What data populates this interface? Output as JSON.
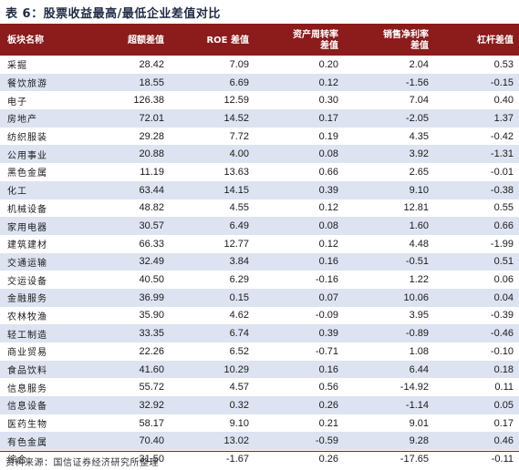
{
  "title": "表 6：股票收益最高/最低企业差值对比",
  "source": "资料来源：国信证券经济研究所整理",
  "colors": {
    "header_bg": "#8c1b1b",
    "stripe_bg": "#dde3f1",
    "title_text": "#1f2a44"
  },
  "table": {
    "headers": [
      "板块名称",
      "超额差值",
      "ROE 差值",
      "资产周转率\n差值",
      "销售净利率\n差值",
      "杠杆差值"
    ],
    "rows": [
      [
        "采掘",
        "28.42",
        "7.09",
        "0.20",
        "2.04",
        "0.53"
      ],
      [
        "餐饮旅游",
        "18.55",
        "6.69",
        "0.12",
        "-1.56",
        "-0.15"
      ],
      [
        "电子",
        "126.38",
        "12.59",
        "0.30",
        "7.04",
        "0.40"
      ],
      [
        "房地产",
        "72.01",
        "14.52",
        "0.17",
        "-2.05",
        "1.37"
      ],
      [
        "纺织服装",
        "29.28",
        "7.72",
        "0.19",
        "4.35",
        "-0.42"
      ],
      [
        "公用事业",
        "20.88",
        "4.00",
        "0.08",
        "3.92",
        "-1.31"
      ],
      [
        "黑色金属",
        "11.19",
        "13.63",
        "0.66",
        "2.65",
        "-0.01"
      ],
      [
        "化工",
        "63.44",
        "14.15",
        "0.39",
        "9.10",
        "-0.38"
      ],
      [
        "机械设备",
        "48.82",
        "4.55",
        "0.12",
        "12.81",
        "0.55"
      ],
      [
        "家用电器",
        "30.57",
        "6.49",
        "0.08",
        "1.60",
        "0.66"
      ],
      [
        "建筑建材",
        "66.33",
        "12.77",
        "0.12",
        "4.48",
        "-1.99"
      ],
      [
        "交通运输",
        "32.49",
        "3.84",
        "0.16",
        "-0.51",
        "0.51"
      ],
      [
        "交运设备",
        "40.50",
        "6.29",
        "-0.16",
        "1.22",
        "0.06"
      ],
      [
        "金融服务",
        "36.99",
        "0.15",
        "0.07",
        "10.06",
        "0.04"
      ],
      [
        "农林牧渔",
        "35.90",
        "4.62",
        "-0.09",
        "3.95",
        "-0.39"
      ],
      [
        "轻工制造",
        "33.35",
        "6.74",
        "0.39",
        "-0.89",
        "-0.46"
      ],
      [
        "商业贸易",
        "22.26",
        "6.52",
        "-0.71",
        "1.08",
        "-0.10"
      ],
      [
        "食品饮料",
        "41.60",
        "10.29",
        "0.16",
        "6.44",
        "0.18"
      ],
      [
        "信息服务",
        "55.72",
        "4.57",
        "0.56",
        "-14.92",
        "0.11"
      ],
      [
        "信息设备",
        "32.92",
        "0.32",
        "0.26",
        "-1.14",
        "0.05"
      ],
      [
        "医药生物",
        "58.17",
        "9.10",
        "0.21",
        "9.01",
        "0.17"
      ],
      [
        "有色金属",
        "70.40",
        "13.02",
        "-0.59",
        "9.28",
        "0.46"
      ],
      [
        "综合",
        "31.50",
        "-1.67",
        "0.26",
        "-17.65",
        "-0.11"
      ]
    ]
  }
}
